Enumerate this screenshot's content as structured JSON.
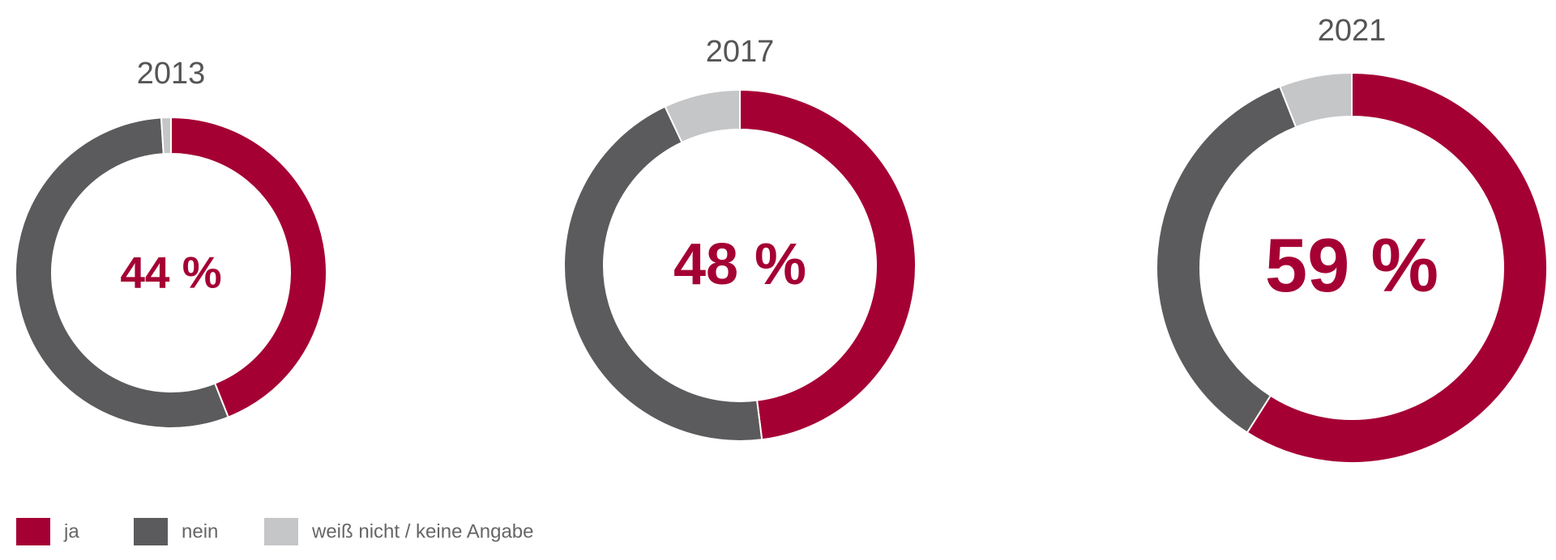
{
  "chart_data": {
    "type": "donut",
    "categories": [
      "2013",
      "2017",
      "2021"
    ],
    "series": [
      {
        "name": "ja",
        "color": "#a50034",
        "values": [
          44,
          48,
          59
        ],
        "value_labels": [
          "44 %",
          "48 %",
          "59 %"
        ]
      },
      {
        "name": "nein",
        "color": "#5b5b5d",
        "values": [
          55,
          45,
          35
        ]
      },
      {
        "name": "weiß nicht / keine Angabe",
        "color": "#c5c6c8",
        "values": [
          1,
          7,
          6
        ]
      }
    ],
    "legend": "bottom-left"
  }
}
